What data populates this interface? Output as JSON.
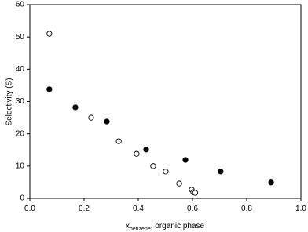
{
  "chart_data": {
    "type": "scatter",
    "xlabel": {
      "main": "x",
      "sub": "benzene",
      "rest": ", organic phase"
    },
    "ylabel": "Selectivity (S)",
    "series": [
      {
        "color": "#000000",
        "marker": "filled",
        "x": [
          0.072,
          0.168,
          0.284,
          0.429,
          0.574,
          0.704,
          0.89
        ],
        "values": [
          33.8,
          28.2,
          23.8,
          15.1,
          11.9,
          8.3,
          4.9
        ]
      },
      {
        "color": "#000000",
        "marker": "open",
        "x": [
          0.072,
          0.226,
          0.328,
          0.394,
          0.455,
          0.501,
          0.551,
          0.597,
          0.603,
          0.61
        ],
        "values": [
          51.0,
          25.0,
          17.7,
          13.8,
          10.0,
          8.3,
          4.6,
          2.7,
          1.9,
          1.7
        ]
      }
    ],
    "xlim": [
      0,
      1
    ],
    "ylim": [
      0,
      60
    ],
    "xticks": [
      {
        "value": 0,
        "label": "0.0"
      },
      0.2,
      0.4,
      0.6,
      0.8,
      {
        "value": 1,
        "label": "1.0"
      }
    ],
    "yticks": [
      0,
      10,
      20,
      30,
      40,
      50,
      60
    ],
    "grid": false
  }
}
